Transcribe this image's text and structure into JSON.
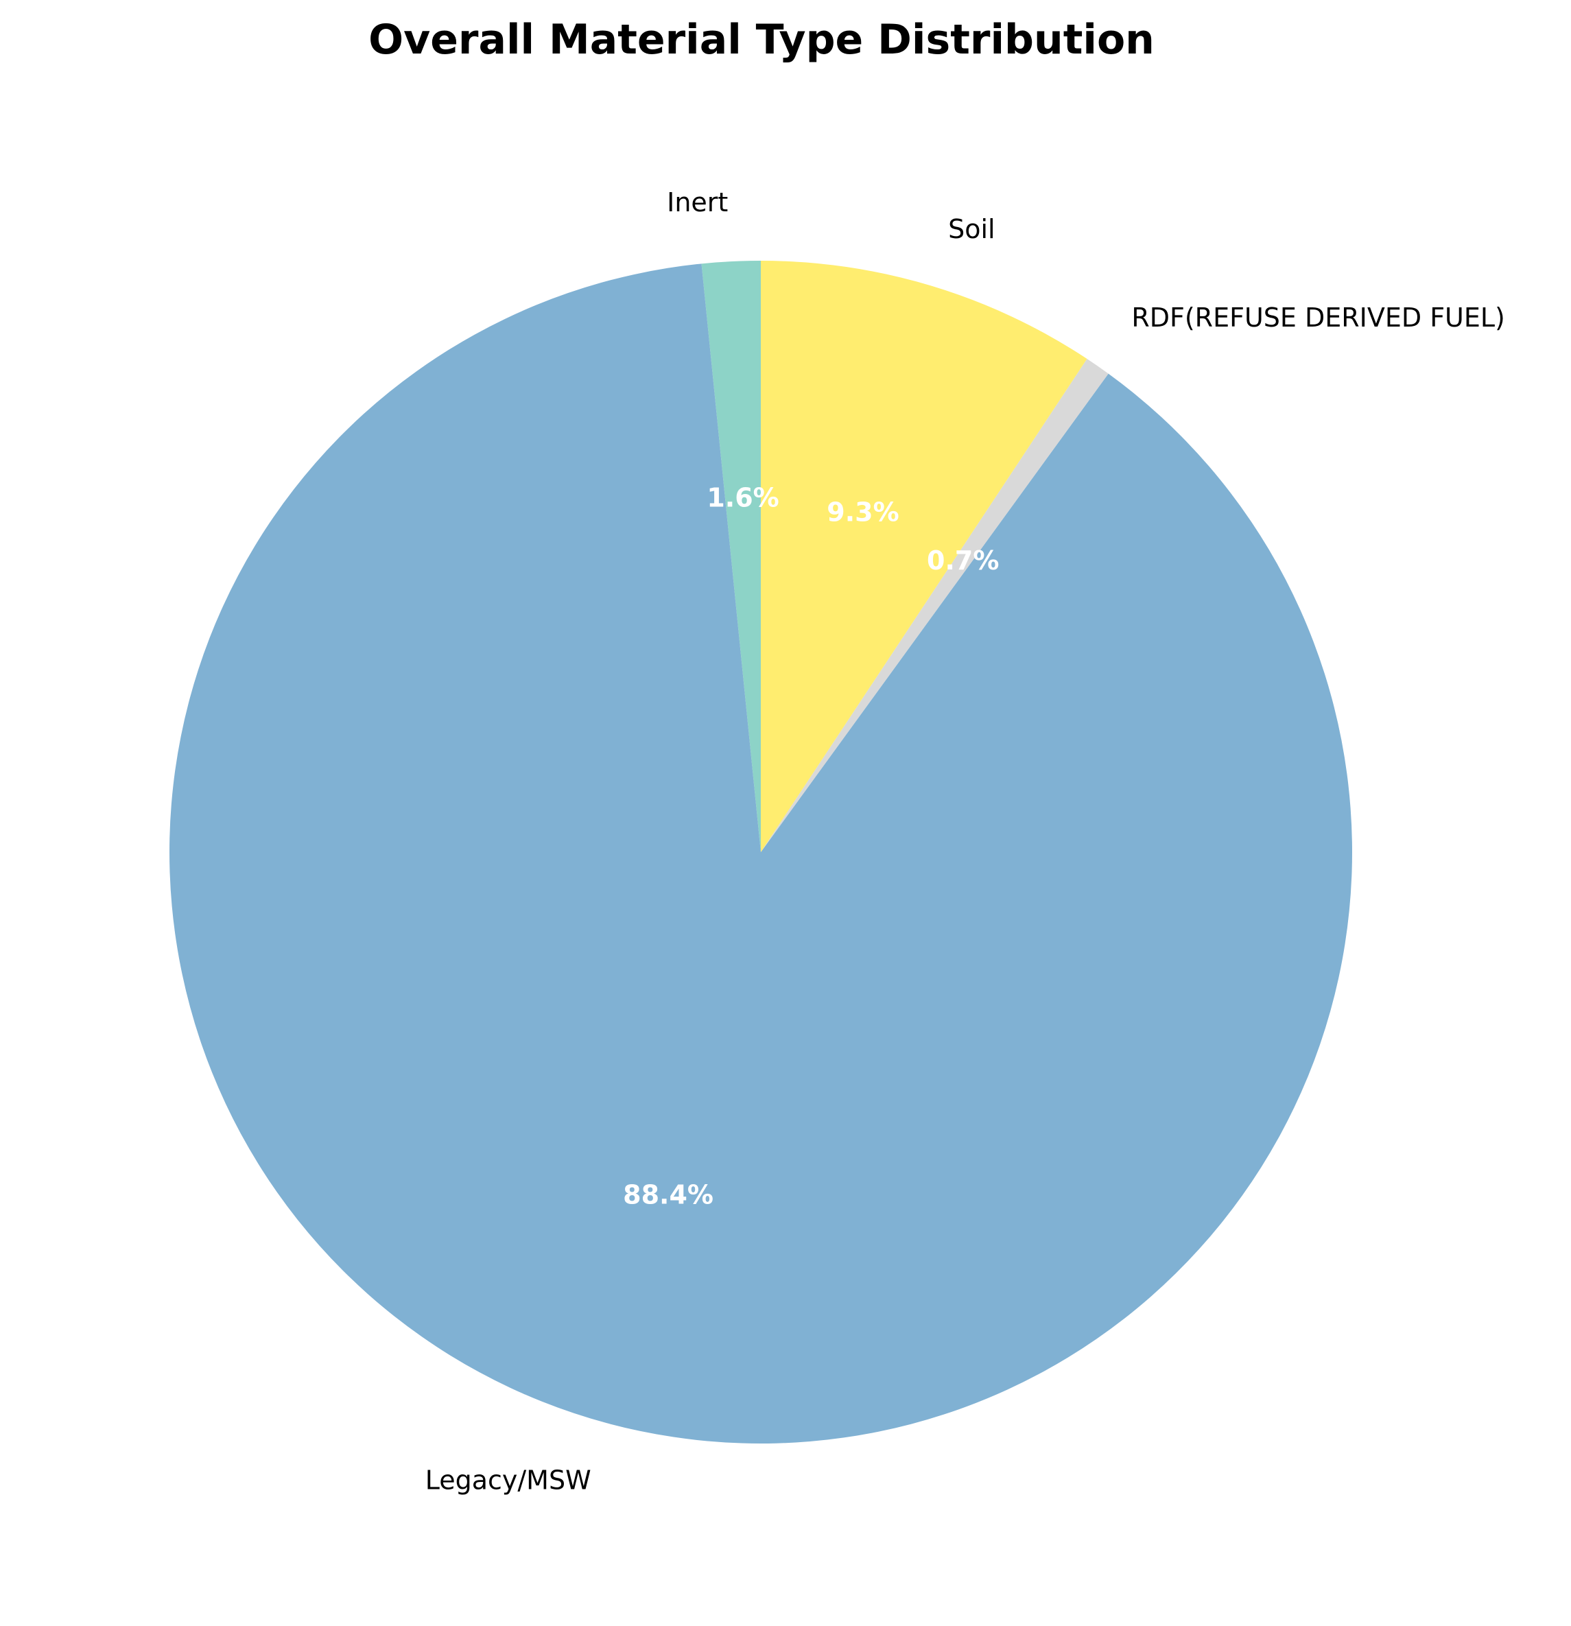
{
  "chart_data": {
    "type": "pie",
    "title": "Overall Material Type Distribution",
    "start_angle_deg": 90,
    "direction": "counterclockwise",
    "slices": [
      {
        "label": "Inert",
        "value": 1.6,
        "pct_label": "1.6%",
        "color": "#8dd3c7"
      },
      {
        "label": "Legacy/MSW",
        "value": 88.4,
        "pct_label": "88.4%",
        "color": "#80b1d3"
      },
      {
        "label": "RDF(REFUSE DERIVED FUEL)",
        "value": 0.7,
        "pct_label": "0.7%",
        "color": "#d9d9d9"
      },
      {
        "label": "Soil",
        "value": 9.3,
        "pct_label": "9.3%",
        "color": "#ffed6f"
      }
    ]
  }
}
